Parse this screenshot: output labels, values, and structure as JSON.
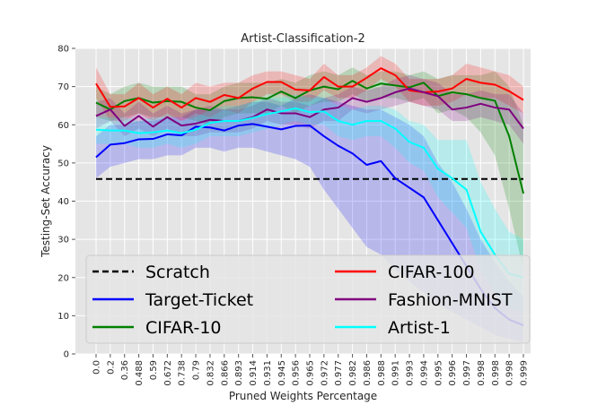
{
  "chart_data": {
    "type": "line",
    "title": "Artist-Classification-2",
    "xlabel": "Pruned Weights Percentage",
    "ylabel": "Testing-Set Accuracy",
    "ylim": [
      0,
      80
    ],
    "yticks": [
      "0",
      "10",
      "20",
      "30",
      "40",
      "50",
      "60",
      "70",
      "80"
    ],
    "grid": true,
    "legend_position": "lower-center",
    "categories": [
      "0.0",
      "0.2",
      "0.36",
      "0.488",
      "0.59",
      "0.672",
      "0.738",
      "0.79",
      "0.832",
      "0.866",
      "0.893",
      "0.914",
      "0.931",
      "0.945",
      "0.956",
      "0.965",
      "0.972",
      "0.977",
      "0.982",
      "0.986",
      "0.988",
      "0.991",
      "0.993",
      "0.994",
      "0.995",
      "0.996",
      "0.997",
      "0.998",
      "0.998",
      "0.998",
      "0.999"
    ],
    "series": [
      {
        "name": "Scratch",
        "color": "#000000",
        "style": "dashed",
        "values": [
          45.8,
          45.8,
          45.8,
          45.8,
          45.8,
          45.8,
          45.8,
          45.8,
          45.8,
          45.8,
          45.8,
          45.8,
          45.8,
          45.8,
          45.8,
          45.8,
          45.8,
          45.8,
          45.8,
          45.8,
          45.8,
          45.8,
          45.8,
          45.8,
          45.8,
          45.8,
          45.8,
          45.8,
          45.8,
          45.8,
          45.8
        ]
      },
      {
        "name": "Target-Ticket",
        "color": "#0000ff",
        "style": "solid",
        "values": [
          51.5,
          54.8,
          55.2,
          56.2,
          56.3,
          57.5,
          57.2,
          59.5,
          59.3,
          58.5,
          59.8,
          60.2,
          59.5,
          58.8,
          59.7,
          59.8,
          57.0,
          54.5,
          52.5,
          49.5,
          50.5,
          46.0,
          43.5,
          41.0,
          35.0,
          29.0,
          23.0,
          17.0,
          12.0,
          9.0,
          7.5
        ],
        "lower": [
          46,
          49,
          50,
          51,
          51,
          52,
          52,
          54,
          54,
          53,
          54,
          54,
          53,
          52,
          51,
          49,
          43,
          38,
          33,
          28,
          26,
          22,
          19,
          16,
          13,
          11,
          9,
          7,
          5,
          4,
          3
        ],
        "upper": [
          57,
          60,
          60,
          61,
          61,
          62,
          62,
          64,
          64,
          64,
          65,
          66,
          66,
          65,
          67,
          68,
          67,
          66,
          65,
          64,
          64,
          62,
          60,
          57,
          50,
          45,
          38,
          30,
          24,
          19,
          15
        ]
      },
      {
        "name": "CIFAR-10",
        "color": "#008000",
        "style": "solid",
        "values": [
          65.8,
          64.0,
          66.2,
          67.0,
          65.8,
          66.2,
          66.0,
          64.5,
          63.8,
          66.2,
          67.0,
          67.2,
          66.8,
          68.7,
          67.0,
          69.0,
          70.0,
          69.3,
          71.5,
          69.5,
          70.8,
          70.3,
          69.8,
          71.0,
          67.5,
          68.5,
          68.0,
          67.0,
          66.3,
          57.0,
          42.0
        ],
        "lower": [
          62,
          61,
          62,
          63,
          62,
          62,
          62,
          61,
          60,
          62,
          63,
          63,
          63,
          65,
          63,
          65,
          66,
          66,
          68,
          66,
          67,
          67,
          66,
          67,
          63,
          64,
          62,
          58,
          52,
          38,
          22
        ],
        "upper": [
          70,
          68,
          70,
          71,
          70,
          70,
          70,
          68,
          68,
          70,
          71,
          71,
          71,
          72,
          71,
          73,
          74,
          73,
          75,
          73,
          74,
          74,
          73,
          74,
          72,
          73,
          73,
          73,
          74,
          70,
          60
        ]
      },
      {
        "name": "CIFAR-100",
        "color": "#ff0000",
        "style": "solid",
        "values": [
          70.8,
          64.7,
          64.8,
          67.0,
          64.5,
          66.8,
          64.5,
          67.0,
          66.0,
          67.8,
          67.0,
          69.5,
          71.2,
          71.2,
          69.2,
          69.0,
          72.5,
          70.0,
          70.0,
          72.3,
          74.8,
          73.0,
          69.0,
          68.5,
          68.7,
          69.5,
          72.0,
          71.0,
          70.5,
          68.8,
          66.5
        ],
        "lower": [
          67,
          61,
          61,
          63,
          61,
          63,
          61,
          63,
          62,
          64,
          63,
          66,
          68,
          68,
          66,
          66,
          69,
          67,
          67,
          69,
          72,
          70,
          66,
          65,
          65,
          66,
          68,
          67,
          67,
          65,
          63
        ],
        "upper": [
          75,
          68,
          68,
          71,
          68,
          70,
          68,
          71,
          70,
          71,
          71,
          73,
          74,
          74,
          73,
          72,
          76,
          73,
          73,
          75,
          78,
          76,
          72,
          72,
          72,
          73,
          76,
          75,
          74,
          73,
          70
        ]
      },
      {
        "name": "Fashion-MNIST",
        "color": "#800080",
        "style": "solid",
        "values": [
          62.3,
          64.0,
          59.7,
          62.3,
          59.5,
          62.0,
          59.8,
          60.3,
          61.3,
          61.0,
          61.0,
          62.0,
          64.0,
          63.0,
          63.0,
          62.0,
          64.0,
          64.5,
          67.0,
          66.0,
          67.0,
          68.5,
          69.5,
          68.5,
          67.5,
          64.0,
          64.5,
          65.5,
          64.5,
          64.0,
          59.0
        ],
        "lower": [
          59,
          61,
          57,
          59,
          57,
          59,
          57,
          57,
          58,
          58,
          58,
          59,
          61,
          60,
          60,
          59,
          61,
          61,
          64,
          63,
          64,
          65,
          66,
          65,
          64,
          61,
          61,
          62,
          61,
          60,
          55
        ],
        "upper": [
          66,
          67,
          63,
          66,
          63,
          65,
          63,
          64,
          65,
          64,
          64,
          65,
          67,
          66,
          66,
          65,
          67,
          68,
          70,
          69,
          70,
          72,
          73,
          72,
          71,
          68,
          68,
          69,
          68,
          68,
          63
        ]
      },
      {
        "name": "Artist-1",
        "color": "#00ffff",
        "style": "solid",
        "values": [
          58.7,
          58.5,
          58.5,
          57.8,
          58.0,
          58.5,
          57.8,
          58.7,
          60.5,
          61.0,
          61.0,
          61.8,
          62.8,
          63.5,
          64.3,
          63.3,
          63.5,
          61.0,
          60.0,
          61.0,
          61.0,
          59.0,
          55.5,
          54.0,
          48.5,
          46.0,
          43.0,
          32.0,
          26.0,
          21.0,
          20.0
        ],
        "lower": [
          55,
          55,
          55,
          54,
          54,
          55,
          54,
          55,
          57,
          57,
          57,
          58,
          59,
          60,
          61,
          60,
          60,
          57,
          56,
          57,
          57,
          54,
          50,
          48,
          41,
          37,
          33,
          22,
          16,
          12,
          11
        ],
        "upper": [
          62,
          62,
          62,
          61,
          62,
          62,
          61,
          62,
          64,
          65,
          65,
          66,
          67,
          67,
          68,
          67,
          67,
          65,
          64,
          65,
          65,
          64,
          61,
          60,
          56,
          56,
          56,
          45,
          38,
          32,
          30
        ]
      }
    ]
  }
}
